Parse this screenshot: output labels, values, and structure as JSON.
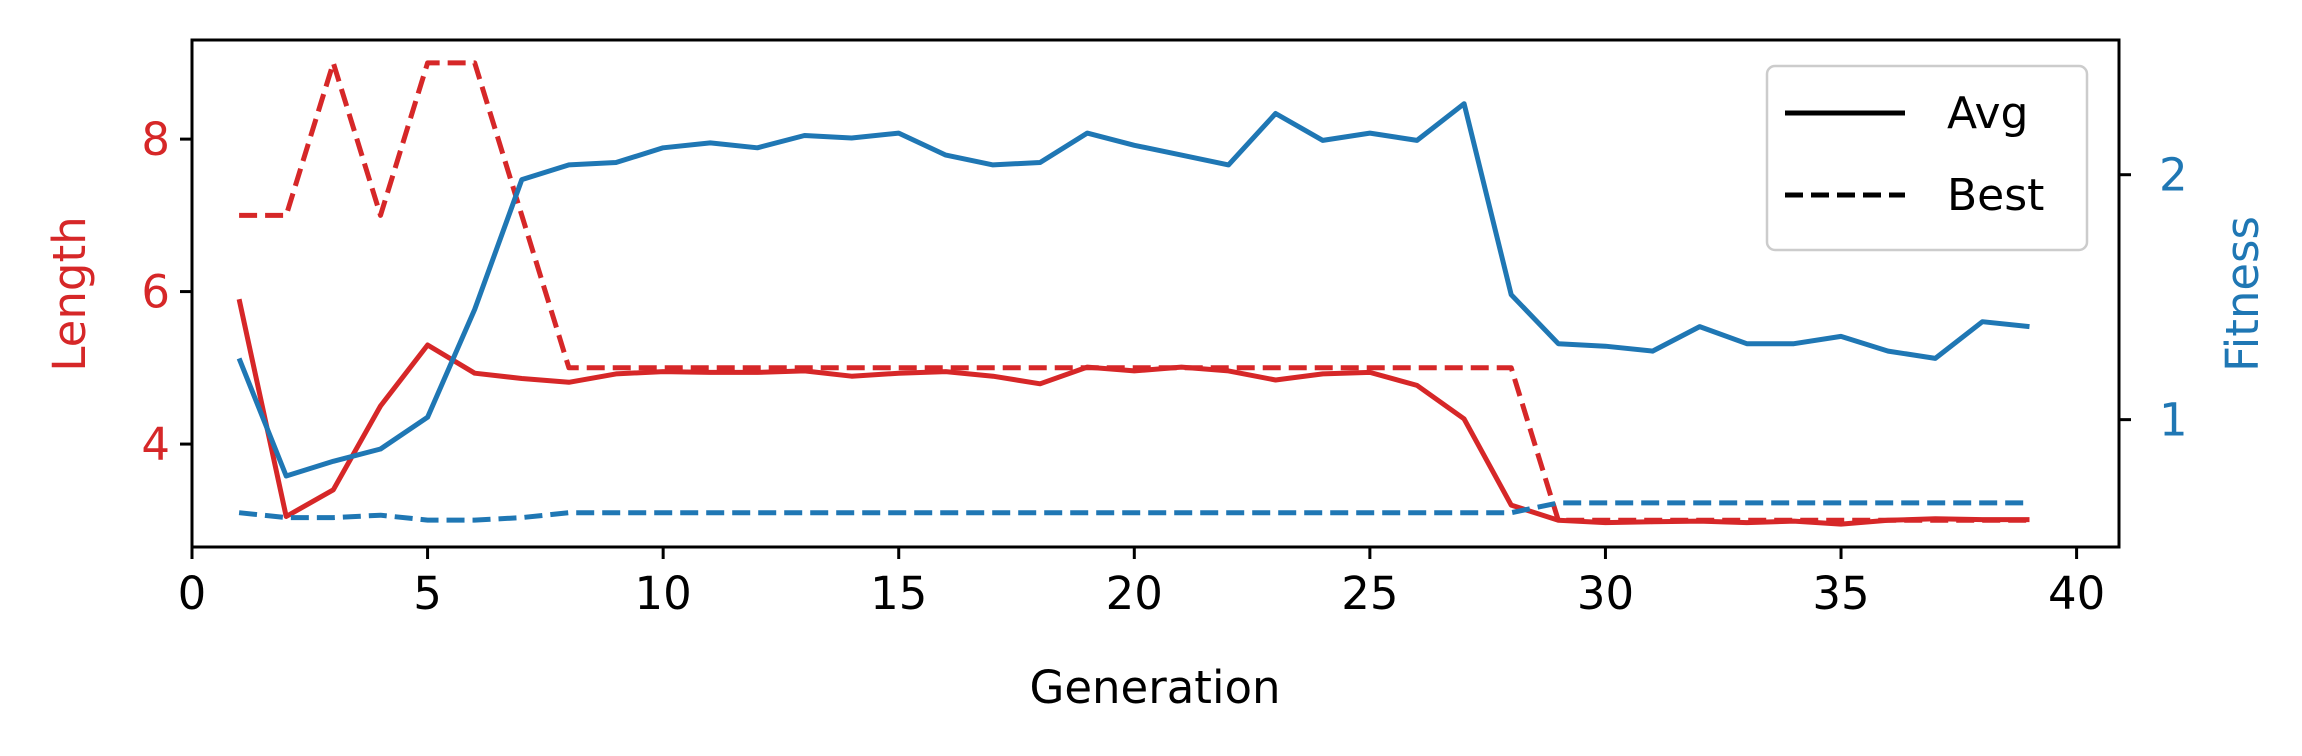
{
  "chart_data": {
    "type": "line",
    "xlabel": "Generation",
    "ylabel_left": "Length",
    "ylabel_right": "Fitness",
    "xlim": [
      0,
      40.9
    ],
    "ylim_left": [
      2.65,
      9.3
    ],
    "ylim_right": [
      0.48,
      2.55
    ],
    "xticks": [
      0,
      5,
      10,
      15,
      20,
      25,
      30,
      35,
      40
    ],
    "yticks_left": [
      4,
      6,
      8
    ],
    "yticks_right": [
      1,
      2
    ],
    "grid": false,
    "legend_position": "top-right",
    "legend": [
      {
        "label": "Avg",
        "style": "solid"
      },
      {
        "label": "Best",
        "style": "dashed"
      }
    ],
    "colors": {
      "length": "#d62728",
      "fitness": "#1f77b4"
    },
    "x": [
      1,
      2,
      3,
      4,
      5,
      6,
      7,
      8,
      9,
      10,
      11,
      12,
      13,
      14,
      15,
      16,
      17,
      18,
      19,
      20,
      21,
      22,
      23,
      24,
      25,
      26,
      27,
      28,
      29,
      30,
      31,
      32,
      33,
      34,
      35,
      36,
      37,
      38,
      39
    ],
    "series": [
      {
        "axis": "left",
        "style": "solid",
        "color_key": "length",
        "values": [
          5.9,
          3.05,
          3.4,
          4.5,
          5.3,
          4.93,
          4.86,
          4.81,
          4.92,
          4.95,
          4.94,
          4.94,
          4.96,
          4.89,
          4.93,
          4.95,
          4.89,
          4.79,
          5.01,
          4.96,
          5.01,
          4.96,
          4.84,
          4.92,
          4.94,
          4.77,
          4.33,
          3.2,
          3.0,
          2.97,
          2.98,
          2.99,
          2.97,
          2.99,
          2.95,
          3.0,
          3.02,
          3.01,
          3.01
        ]
      },
      {
        "axis": "left",
        "style": "dashed",
        "color_key": "length",
        "values": [
          7.0,
          7.0,
          9.0,
          7.0,
          9.0,
          9.0,
          7.0,
          5.0,
          5.0,
          5.0,
          5.0,
          5.0,
          5.0,
          5.0,
          5.0,
          5.0,
          5.0,
          5.0,
          5.0,
          5.0,
          5.0,
          5.0,
          5.0,
          5.0,
          5.0,
          5.0,
          5.0,
          5.0,
          3.0,
          3.0,
          3.0,
          3.0,
          3.0,
          3.0,
          3.0,
          3.0,
          3.0,
          3.0,
          3.0
        ]
      },
      {
        "axis": "right",
        "style": "solid",
        "color_key": "fitness",
        "values": [
          1.25,
          0.77,
          0.83,
          0.88,
          1.01,
          1.45,
          1.98,
          2.04,
          2.05,
          2.11,
          2.13,
          2.11,
          2.16,
          2.15,
          2.17,
          2.08,
          2.04,
          2.05,
          2.17,
          2.12,
          2.08,
          2.04,
          2.25,
          2.14,
          2.17,
          2.14,
          2.29,
          1.51,
          1.31,
          1.3,
          1.28,
          1.38,
          1.31,
          1.31,
          1.34,
          1.28,
          1.25,
          1.4,
          1.38
        ]
      },
      {
        "axis": "right",
        "style": "dashed",
        "color_key": "fitness",
        "values": [
          0.62,
          0.6,
          0.6,
          0.61,
          0.59,
          0.59,
          0.6,
          0.62,
          0.62,
          0.62,
          0.62,
          0.62,
          0.62,
          0.62,
          0.62,
          0.62,
          0.62,
          0.62,
          0.62,
          0.62,
          0.62,
          0.62,
          0.62,
          0.62,
          0.62,
          0.62,
          0.62,
          0.62,
          0.66,
          0.66,
          0.66,
          0.66,
          0.66,
          0.66,
          0.66,
          0.66,
          0.66,
          0.66,
          0.66
        ]
      }
    ]
  }
}
